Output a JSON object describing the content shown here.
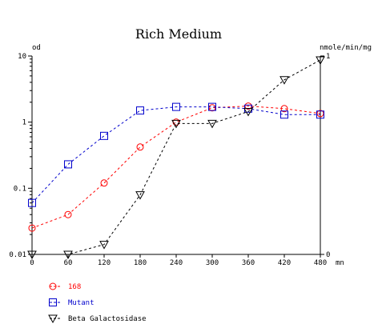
{
  "chart_data": {
    "type": "line",
    "title": "Rich Medium",
    "xlabel": "mn",
    "ylabel_left": "od",
    "ylabel_right": "nmole/min/mg",
    "x_ticks": [
      "0",
      "60",
      "120",
      "180",
      "240",
      "300",
      "360",
      "420",
      "480"
    ],
    "xlim": [
      0,
      480
    ],
    "y_left": {
      "scale": "log",
      "lim": [
        0.01,
        10
      ],
      "ticks": [
        {
          "value": 0.01,
          "label": "0.01"
        },
        {
          "value": 0.1,
          "label": "0.1"
        },
        {
          "value": 1,
          "label": "1"
        },
        {
          "value": 10,
          "label": "10"
        }
      ]
    },
    "y_right": {
      "scale": "linear",
      "lim": [
        0,
        1
      ],
      "ticks": [
        {
          "value": 0,
          "label": "0"
        },
        {
          "value": 1,
          "label": "1"
        }
      ]
    },
    "grid": false,
    "legend_position": "bottom-left",
    "series": [
      {
        "name": "168",
        "axis": "left",
        "color": "#ff0000",
        "marker": "circle",
        "x": [
          0,
          60,
          120,
          180,
          240,
          300,
          360,
          420,
          480
        ],
        "y": [
          0.025,
          0.04,
          0.12,
          0.42,
          1.0,
          1.65,
          1.75,
          1.6,
          1.35
        ]
      },
      {
        "name": "Mutant",
        "axis": "left",
        "color": "#0000cc",
        "marker": "square",
        "x": [
          0,
          60,
          120,
          180,
          240,
          300,
          360,
          420,
          480
        ],
        "y": [
          0.06,
          0.23,
          0.62,
          1.5,
          1.7,
          1.7,
          1.6,
          1.3,
          1.3
        ]
      },
      {
        "name": "Beta Galactosidase",
        "axis": "right",
        "color": "#000000",
        "marker": "triangle-down",
        "x": [
          0,
          60,
          120,
          180,
          240,
          300,
          360,
          420,
          480
        ],
        "y": [
          0.0,
          0.0,
          0.05,
          0.3,
          0.66,
          0.66,
          0.72,
          0.88,
          0.98
        ]
      }
    ]
  }
}
